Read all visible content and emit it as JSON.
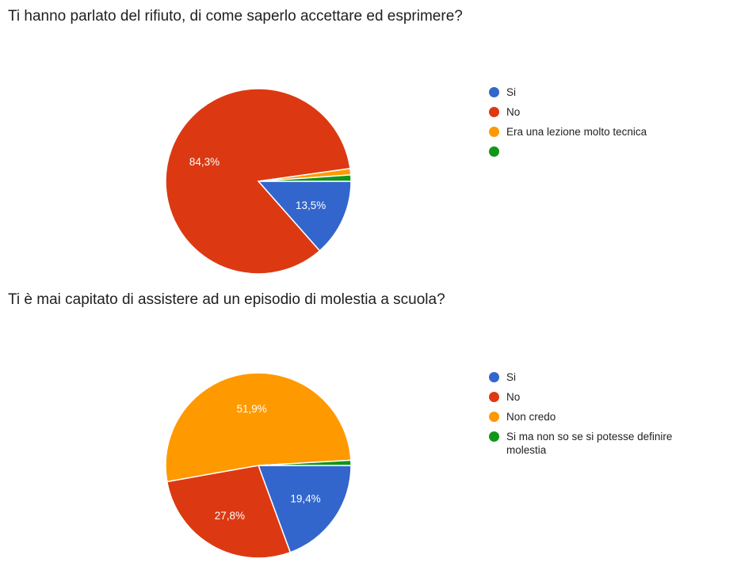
{
  "chart_data": [
    {
      "type": "pie",
      "title": "Ti hanno parlato del rifiuto, di come saperlo accettare ed esprimere?",
      "legend_position": "right",
      "categories": [
        "Si",
        "No",
        "Era una lezione molto tecnica",
        ""
      ],
      "values": [
        13.5,
        84.3,
        1.1,
        1.1
      ],
      "colors": [
        "#3366cc",
        "#dc3912",
        "#ff9900",
        "#109618"
      ],
      "data_labels": [
        "13,5%",
        "84,3%",
        "",
        ""
      ]
    },
    {
      "type": "pie",
      "title": "Ti è mai capitato di assistere ad un episodio di molestia a scuola?",
      "legend_position": "right",
      "categories": [
        "Si",
        "No",
        "Non credo",
        "Si ma non so se si potesse definire molestia"
      ],
      "values": [
        19.4,
        27.8,
        51.9,
        0.9
      ],
      "colors": [
        "#3366cc",
        "#dc3912",
        "#ff9900",
        "#109618"
      ],
      "data_labels": [
        "19,4%",
        "27,8%",
        "51,9%",
        ""
      ]
    }
  ]
}
